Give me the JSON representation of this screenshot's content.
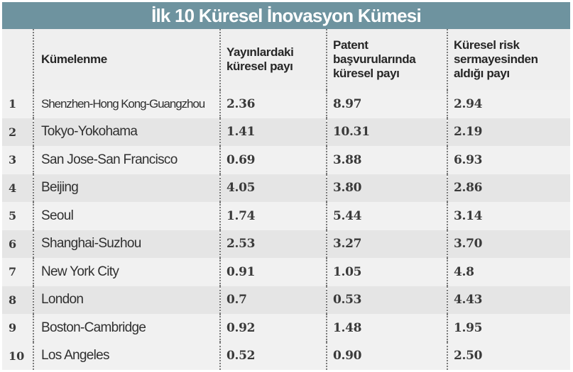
{
  "title": "İlk 10 Küresel İnovasyon Kümesi",
  "colors": {
    "title_bar": "#6e939f",
    "title_text": "#ffffff",
    "row_light": "#f1f1f1",
    "row_dark": "#e5e5e5",
    "divider": "#7a7a7a"
  },
  "table": {
    "headers": {
      "rank": "",
      "name": "Kümelenme",
      "publications": "Yayınlardaki küresel payı",
      "patents": "Patent başvurularında küresel payı",
      "venture_capital": "Küresel risk sermayesinden aldığı payı"
    },
    "rows": [
      {
        "rank": "1",
        "name": "Shenzhen-Hong Kong-Guangzhou",
        "publications": "2.36",
        "patents": "8.97",
        "venture_capital": "2.94"
      },
      {
        "rank": "2",
        "name": "Tokyo-Yokohama",
        "publications": "1.41",
        "patents": "10.31",
        "venture_capital": "2.19"
      },
      {
        "rank": "3",
        "name": "San Jose-San Francisco",
        "publications": "0.69",
        "patents": "3.88",
        "venture_capital": "6.93"
      },
      {
        "rank": "4",
        "name": "Beijing",
        "publications": "4.05",
        "patents": "3.80",
        "venture_capital": "2.86"
      },
      {
        "rank": "5",
        "name": "Seoul",
        "publications": "1.74",
        "patents": "5.44",
        "venture_capital": "3.14"
      },
      {
        "rank": "6",
        "name": "Shanghai-Suzhou",
        "publications": "2.53",
        "patents": "3.27",
        "venture_capital": "3.70"
      },
      {
        "rank": "7",
        "name": "New York City",
        "publications": "0.91",
        "patents": "1.05",
        "venture_capital": "4.8"
      },
      {
        "rank": "8",
        "name": "London",
        "publications": "0.7",
        "patents": "0.53",
        "venture_capital": "4.43"
      },
      {
        "rank": "9",
        "name": "Boston-Cambridge",
        "publications": "0.92",
        "patents": "1.48",
        "venture_capital": "1.95"
      },
      {
        "rank": "10",
        "name": "Los Angeles",
        "publications": "0.52",
        "patents": "0.90",
        "venture_capital": "2.50"
      }
    ]
  }
}
